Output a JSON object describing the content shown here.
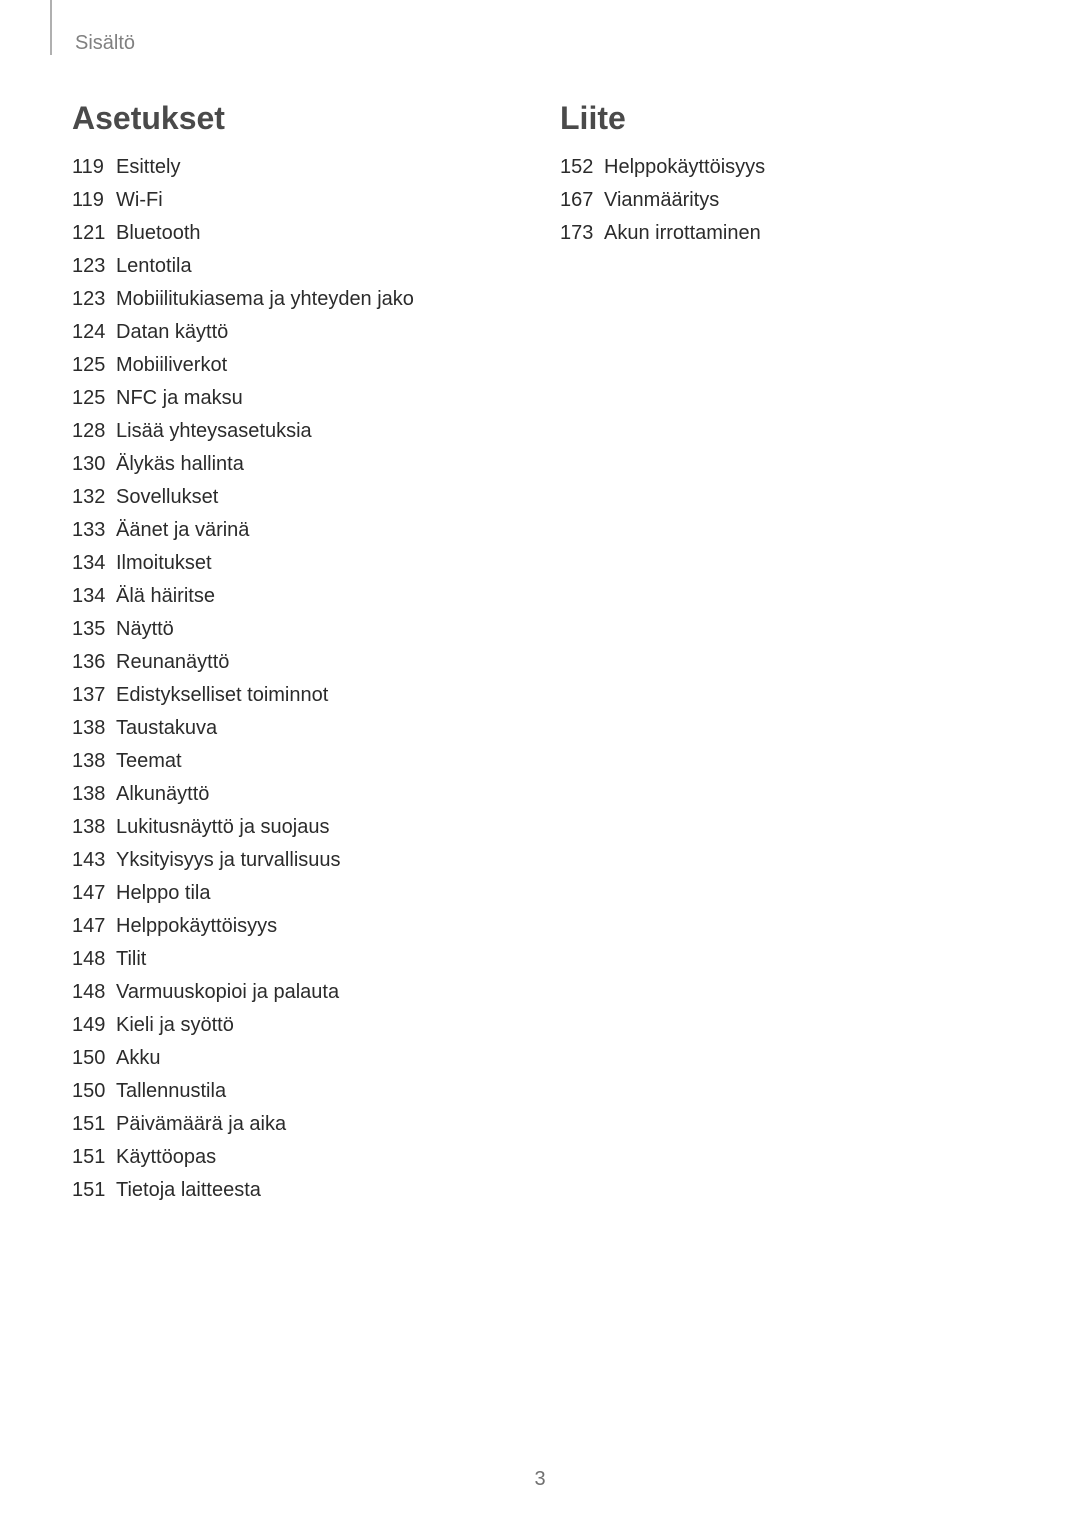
{
  "header": {
    "label": "Sisältö"
  },
  "page_number": "3",
  "left": {
    "title": "Asetukset",
    "items": [
      {
        "page": "119",
        "label": "Esittely"
      },
      {
        "page": "119",
        "label": "Wi-Fi"
      },
      {
        "page": "121",
        "label": "Bluetooth"
      },
      {
        "page": "123",
        "label": "Lentotila"
      },
      {
        "page": "123",
        "label": "Mobiilitukiasema ja yhteyden jako"
      },
      {
        "page": "124",
        "label": "Datan käyttö"
      },
      {
        "page": "125",
        "label": "Mobiiliverkot"
      },
      {
        "page": "125",
        "label": "NFC ja maksu"
      },
      {
        "page": "128",
        "label": "Lisää yhteysasetuksia"
      },
      {
        "page": "130",
        "label": "Älykäs hallinta"
      },
      {
        "page": "132",
        "label": "Sovellukset"
      },
      {
        "page": "133",
        "label": "Äänet ja värinä"
      },
      {
        "page": "134",
        "label": "Ilmoitukset"
      },
      {
        "page": "134",
        "label": "Älä häiritse"
      },
      {
        "page": "135",
        "label": "Näyttö"
      },
      {
        "page": "136",
        "label": "Reunanäyttö"
      },
      {
        "page": "137",
        "label": "Edistykselliset toiminnot"
      },
      {
        "page": "138",
        "label": "Taustakuva"
      },
      {
        "page": "138",
        "label": "Teemat"
      },
      {
        "page": "138",
        "label": "Alkunäyttö"
      },
      {
        "page": "138",
        "label": "Lukitusnäyttö ja suojaus"
      },
      {
        "page": "143",
        "label": "Yksityisyys ja turvallisuus"
      },
      {
        "page": "147",
        "label": "Helppo tila"
      },
      {
        "page": "147",
        "label": "Helppokäyttöisyys"
      },
      {
        "page": "148",
        "label": "Tilit"
      },
      {
        "page": "148",
        "label": "Varmuuskopioi ja palauta"
      },
      {
        "page": "149",
        "label": "Kieli ja syöttö"
      },
      {
        "page": "150",
        "label": "Akku"
      },
      {
        "page": "150",
        "label": "Tallennustila"
      },
      {
        "page": "151",
        "label": "Päivämäärä ja aika"
      },
      {
        "page": "151",
        "label": "Käyttöopas"
      },
      {
        "page": "151",
        "label": "Tietoja laitteesta"
      }
    ]
  },
  "right": {
    "title": "Liite",
    "items": [
      {
        "page": "152",
        "label": "Helppokäyttöisyys"
      },
      {
        "page": "167",
        "label": "Vianmääritys"
      },
      {
        "page": "173",
        "label": "Akun irrottaminen"
      }
    ]
  },
  "style": {
    "title_color": "#4a4a4a",
    "text_color": "#2b2b2b",
    "header_color": "#808080",
    "title_fontsize": 32,
    "body_fontsize": 20,
    "background_color": "#ffffff"
  }
}
